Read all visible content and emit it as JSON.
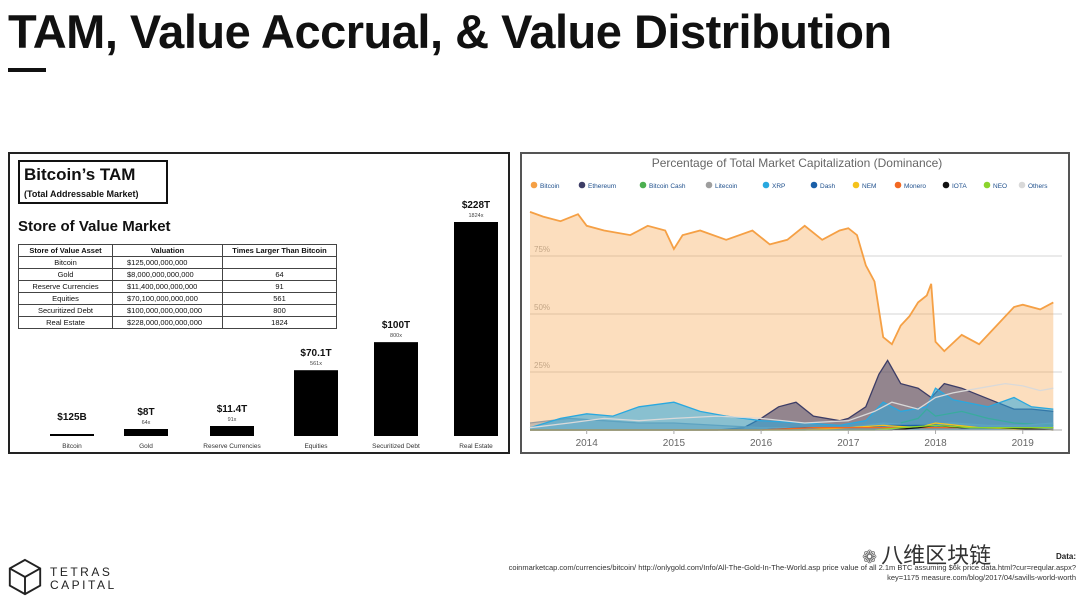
{
  "slide": {
    "title": "TAM, Value Accrual, & Value Distribution"
  },
  "left": {
    "box_title": "Bitcoin’s TAM",
    "box_subtitle": "(Total Addressable Market)",
    "heading": "Store of Value Market",
    "table": {
      "headers": [
        "Store of Value Asset",
        "Valuation",
        "Times Larger Than Bitcoin"
      ],
      "rows": [
        [
          "Bitcoin",
          "$125,000,000,000",
          ""
        ],
        [
          "Gold",
          "$8,000,000,000,000",
          "64"
        ],
        [
          "Reserve Currencies",
          "$11,400,000,000,000",
          "91"
        ],
        [
          "Equities",
          "$70,100,000,000,000",
          "561"
        ],
        [
          "Securitized Debt",
          "$100,000,000,000,000",
          "800"
        ],
        [
          "Real Estate",
          "$228,000,000,000,000",
          "1824"
        ]
      ]
    }
  },
  "chart_data": [
    {
      "type": "bar",
      "categories": [
        "Bitcoin",
        "Gold",
        "Reserve Currencies",
        "Equities",
        "Securitized Debt",
        "Real Estate"
      ],
      "values": [
        0.125,
        8,
        11.4,
        70.1,
        100,
        228
      ],
      "value_labels": [
        "$125B",
        "$8T",
        "$11.4T",
        "$70.1T",
        "$100T",
        "$228T"
      ],
      "multiplier_labels": [
        "",
        "64x",
        "91x",
        "561x",
        "800x",
        "1824x"
      ],
      "ylim": [
        0,
        228
      ],
      "color": "#000000",
      "grid": false
    },
    {
      "type": "area",
      "title": "Percentage of Total Market Capitalization (Dominance)",
      "x_ticks": [
        "2014",
        "2015",
        "2016",
        "2017",
        "2018",
        "2019"
      ],
      "xlim": [
        2013.35,
        2019.45
      ],
      "y_ticks": [
        "25%",
        "50%",
        "75%"
      ],
      "y_tick_values": [
        25,
        50,
        75
      ],
      "ylim": [
        0,
        100
      ],
      "grid": true,
      "legend_position": "top",
      "series": [
        {
          "name": "Bitcoin",
          "color": "#f5a045",
          "fill": true,
          "x": [
            2013.35,
            2013.5,
            2013.7,
            2013.9,
            2014.0,
            2014.2,
            2014.5,
            2014.7,
            2014.9,
            2015.0,
            2015.1,
            2015.3,
            2015.6,
            2015.9,
            2016.1,
            2016.3,
            2016.5,
            2016.7,
            2016.9,
            2017.0,
            2017.1,
            2017.2,
            2017.3,
            2017.4,
            2017.5,
            2017.6,
            2017.7,
            2017.8,
            2017.9,
            2017.95,
            2018.0,
            2018.1,
            2018.3,
            2018.5,
            2018.7,
            2018.9,
            2019.0,
            2019.2,
            2019.35
          ],
          "y": [
            94,
            92,
            90,
            93,
            88,
            86,
            84,
            88,
            86,
            78,
            84,
            86,
            82,
            86,
            80,
            82,
            88,
            82,
            86,
            87,
            84,
            71,
            64,
            40,
            37,
            45,
            49,
            55,
            58,
            63,
            38,
            34,
            41,
            37,
            45,
            53,
            54,
            52,
            55
          ]
        },
        {
          "name": "Ethereum",
          "color": "#3d3d66",
          "fill": true,
          "x": [
            2013.35,
            2015.5,
            2015.8,
            2016.0,
            2016.2,
            2016.4,
            2016.6,
            2016.9,
            2017.0,
            2017.2,
            2017.35,
            2017.45,
            2017.6,
            2017.8,
            2017.95,
            2018.1,
            2018.3,
            2018.5,
            2018.7,
            2018.9,
            2019.1,
            2019.35
          ],
          "y": [
            0,
            0,
            1,
            5,
            10,
            12,
            6,
            4,
            5,
            10,
            24,
            30,
            20,
            18,
            14,
            20,
            18,
            15,
            12,
            9,
            9,
            8
          ]
        },
        {
          "name": "Bitcoin Cash",
          "color": "#4caf50",
          "fill": false,
          "x": [
            2017.6,
            2017.8,
            2017.9,
            2018.0,
            2018.3,
            2018.6,
            2018.9,
            2019.35
          ],
          "y": [
            3,
            5,
            9,
            6,
            8,
            5,
            3,
            2
          ]
        },
        {
          "name": "Litecoin",
          "color": "#9e9e9e",
          "fill": true,
          "x": [
            2013.35,
            2013.8,
            2014.2,
            2014.6,
            2015.0,
            2015.5,
            2016.0,
            2016.5,
            2017.0,
            2017.4,
            2017.8,
            2018.2,
            2018.6,
            2019.0,
            2019.35
          ],
          "y": [
            3,
            5,
            4,
            3,
            3,
            2,
            1,
            1,
            1,
            3,
            2,
            3,
            2,
            2,
            3
          ]
        },
        {
          "name": "XRP",
          "color": "#29a8df",
          "fill": true,
          "x": [
            2013.35,
            2013.7,
            2014.0,
            2014.3,
            2014.6,
            2015.0,
            2015.3,
            2015.6,
            2016.0,
            2016.5,
            2016.9,
            2017.2,
            2017.4,
            2017.6,
            2017.9,
            2018.0,
            2018.2,
            2018.6,
            2018.9,
            2019.1,
            2019.35
          ],
          "y": [
            1,
            5,
            7,
            6,
            10,
            12,
            8,
            6,
            4,
            3,
            2,
            4,
            12,
            8,
            10,
            18,
            13,
            10,
            14,
            10,
            9
          ]
        },
        {
          "name": "Dash",
          "color": "#1a5fa8",
          "fill": false,
          "x": [
            2013.35,
            2016.0,
            2016.5,
            2017.0,
            2017.5,
            2018.0,
            2018.5,
            2019.35
          ],
          "y": [
            0,
            0,
            1,
            1,
            2,
            2,
            1,
            1
          ]
        },
        {
          "name": "NEM",
          "color": "#f4c21c",
          "fill": false,
          "x": [
            2013.35,
            2016.5,
            2017.0,
            2017.4,
            2017.8,
            2018.0,
            2018.5,
            2019.35
          ],
          "y": [
            0,
            0,
            1,
            2,
            1,
            3,
            1,
            0
          ]
        },
        {
          "name": "Monero",
          "color": "#f26822",
          "fill": false,
          "x": [
            2013.35,
            2016.0,
            2016.6,
            2017.0,
            2017.5,
            2018.0,
            2018.5,
            2019.35
          ],
          "y": [
            0,
            0,
            1,
            1,
            1,
            1,
            1,
            1
          ]
        },
        {
          "name": "IOTA",
          "color": "#111111",
          "fill": false,
          "x": [
            2013.35,
            2017.5,
            2017.8,
            2018.0,
            2018.3,
            2018.7,
            2019.35
          ],
          "y": [
            0,
            0,
            1,
            2,
            1,
            1,
            0
          ]
        },
        {
          "name": "NEO",
          "color": "#8bd42c",
          "fill": false,
          "x": [
            2013.35,
            2017.3,
            2017.6,
            2018.0,
            2018.4,
            2018.8,
            2019.35
          ],
          "y": [
            0,
            0,
            1,
            2,
            1,
            1,
            1
          ]
        },
        {
          "name": "Others",
          "color": "#d9d9d9",
          "fill": false,
          "x": [
            2013.35,
            2013.8,
            2014.2,
            2014.6,
            2015.0,
            2015.5,
            2016.0,
            2016.5,
            2017.0,
            2017.3,
            2017.5,
            2017.8,
            2018.0,
            2018.2,
            2018.5,
            2018.8,
            2019.0,
            2019.2,
            2019.35
          ],
          "y": [
            1,
            3,
            5,
            4,
            5,
            6,
            5,
            3,
            4,
            8,
            12,
            9,
            14,
            16,
            18,
            20,
            19,
            17,
            18
          ]
        }
      ]
    }
  ],
  "footer": {
    "logo_line1": "TETRAS",
    "logo_line2": "CAPITAL",
    "watermark": "八维区块链",
    "source_label": "Data:",
    "source_text": "coinmarketcap.com/currencies/bitcoin/ http://onlygold.com/Info/All-The-Gold-In-The-World.asp price value of all 2.1m BTC assuming $6k price data.html?cur=reqular.aspx?key=1175 measure.com/blog/2017/04/savills-world-worth"
  }
}
